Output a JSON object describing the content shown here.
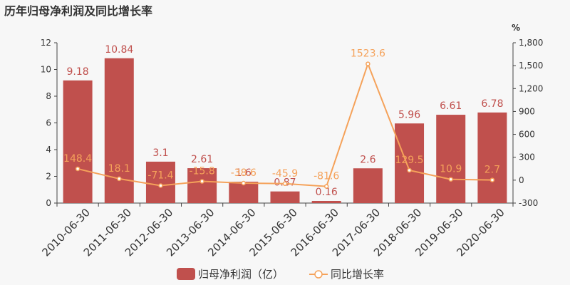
{
  "title": "历年归母净利润及同比增长率",
  "chart_data": {
    "type": "bar",
    "categories": [
      "2010-06-30",
      "2011-06-30",
      "2012-06-30",
      "2013-06-30",
      "2014-06-30",
      "2015-06-30",
      "2016-06-30",
      "2017-06-30",
      "2018-06-30",
      "2019-06-30",
      "2020-06-30"
    ],
    "series": [
      {
        "name": "归母净利润（亿）",
        "type": "bar",
        "axis": "left",
        "color": "#c0504d",
        "values": [
          9.18,
          10.84,
          3.1,
          2.61,
          1.6,
          0.87,
          0.16,
          2.6,
          5.96,
          6.61,
          6.78
        ]
      },
      {
        "name": "同比增长率",
        "type": "line",
        "axis": "right",
        "color": "#f5a25a",
        "values": [
          148.4,
          18.1,
          -71.4,
          -15.8,
          -38.6,
          -45.9,
          -81.6,
          1523.6,
          129.5,
          10.9,
          2.7
        ]
      }
    ],
    "y_left": {
      "min": 0,
      "max": 12,
      "ticks": [
        "0",
        "2",
        "4",
        "6",
        "8",
        "10",
        "12"
      ]
    },
    "y_right": {
      "label": "%",
      "min": -300,
      "max": 1800,
      "ticks": [
        "-300",
        "0",
        "300",
        "600",
        "900",
        "1,200",
        "1,500",
        "1,800"
      ]
    },
    "legend_position": "bottom"
  }
}
